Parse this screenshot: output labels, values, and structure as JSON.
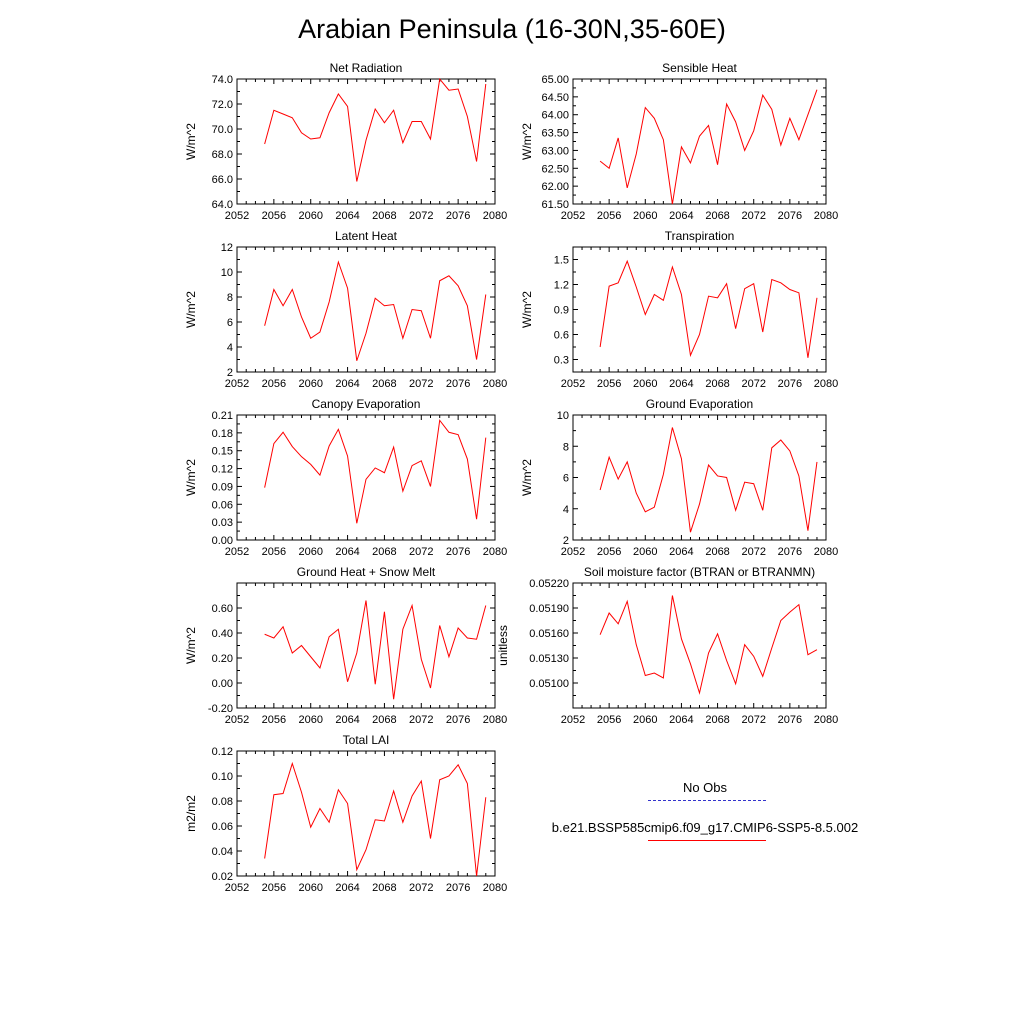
{
  "title": "Arabian Peninsula (16-30N,35-60E)",
  "series_color": "#ff0000",
  "obs_color": "#3333cc",
  "legend": {
    "items": [
      {
        "label": "No Obs",
        "style": "dashed",
        "color": "#3333cc"
      },
      {
        "label": "b.e21.BSSP585cmip6.f09_g17.CMIP6-SSP5-8.5.002",
        "style": "solid",
        "color": "#ff0000"
      }
    ]
  },
  "chart_data": [
    {
      "type": "line",
      "title": "Net Radiation",
      "ylabel": "W/m^2",
      "xlim": [
        2052,
        2080
      ],
      "ylim": [
        64.0,
        74.0
      ],
      "xticks": [
        "2052",
        "2056",
        "2060",
        "2064",
        "2068",
        "2072",
        "2076",
        "2080"
      ],
      "yticks": [
        "64.0",
        "66.0",
        "68.0",
        "70.0",
        "72.0",
        "74.0"
      ],
      "x": [
        2055,
        2056,
        2057,
        2058,
        2059,
        2060,
        2061,
        2062,
        2063,
        2064,
        2065,
        2066,
        2067,
        2068,
        2069,
        2070,
        2071,
        2072,
        2073,
        2074,
        2075,
        2076,
        2077,
        2078,
        2079
      ],
      "series": [
        {
          "values": [
            68.8,
            71.5,
            71.2,
            70.9,
            69.7,
            69.2,
            69.3,
            71.3,
            72.8,
            71.8,
            65.8,
            69.1,
            71.6,
            70.5,
            71.5,
            68.9,
            70.6,
            70.6,
            69.2,
            74.0,
            73.1,
            73.2,
            71.0,
            67.4,
            73.6
          ]
        }
      ]
    },
    {
      "type": "line",
      "title": "Sensible Heat",
      "ylabel": "W/m^2",
      "xlim": [
        2052,
        2080
      ],
      "ylim": [
        61.5,
        65.0
      ],
      "xticks": [
        "2052",
        "2056",
        "2060",
        "2064",
        "2068",
        "2072",
        "2076",
        "2080"
      ],
      "yticks": [
        "61.50",
        "62.00",
        "62.50",
        "63.00",
        "63.50",
        "64.00",
        "64.50",
        "65.00"
      ],
      "x": [
        2055,
        2056,
        2057,
        2058,
        2059,
        2060,
        2061,
        2062,
        2063,
        2064,
        2065,
        2066,
        2067,
        2068,
        2069,
        2070,
        2071,
        2072,
        2073,
        2074,
        2075,
        2076,
        2077,
        2078,
        2079
      ],
      "series": [
        {
          "values": [
            62.7,
            62.5,
            63.35,
            61.95,
            62.9,
            64.2,
            63.9,
            63.3,
            61.5,
            63.1,
            62.65,
            63.4,
            63.7,
            62.6,
            64.3,
            63.8,
            63.0,
            63.55,
            64.55,
            64.15,
            63.15,
            63.9,
            63.3,
            64.0,
            64.7
          ]
        }
      ]
    },
    {
      "type": "line",
      "title": "Latent Heat",
      "ylabel": "W/m^2",
      "xlim": [
        2052,
        2080
      ],
      "ylim": [
        2,
        12
      ],
      "xticks": [
        "2052",
        "2056",
        "2060",
        "2064",
        "2068",
        "2072",
        "2076",
        "2080"
      ],
      "yticks": [
        "2",
        "4",
        "6",
        "8",
        "10",
        "12"
      ],
      "x": [
        2055,
        2056,
        2057,
        2058,
        2059,
        2060,
        2061,
        2062,
        2063,
        2064,
        2065,
        2066,
        2067,
        2068,
        2069,
        2070,
        2071,
        2072,
        2073,
        2074,
        2075,
        2076,
        2077,
        2078,
        2079
      ],
      "series": [
        {
          "values": [
            5.7,
            8.6,
            7.3,
            8.6,
            6.4,
            4.7,
            5.2,
            7.6,
            10.8,
            8.7,
            2.9,
            5.1,
            7.9,
            7.3,
            7.4,
            4.7,
            7.0,
            6.9,
            4.7,
            9.3,
            9.7,
            8.9,
            7.3,
            3.0,
            8.2
          ]
        }
      ]
    },
    {
      "type": "line",
      "title": "Transpiration",
      "ylabel": "W/m^2",
      "xlim": [
        2052,
        2080
      ],
      "ylim": [
        0.15,
        1.65
      ],
      "xticks": [
        "2052",
        "2056",
        "2060",
        "2064",
        "2068",
        "2072",
        "2076",
        "2080"
      ],
      "yticks": [
        "0.3",
        "0.6",
        "0.9",
        "1.2",
        "1.5"
      ],
      "x": [
        2055,
        2056,
        2057,
        2058,
        2059,
        2060,
        2061,
        2062,
        2063,
        2064,
        2065,
        2066,
        2067,
        2068,
        2069,
        2070,
        2071,
        2072,
        2073,
        2074,
        2075,
        2076,
        2077,
        2078,
        2079
      ],
      "series": [
        {
          "values": [
            0.45,
            1.18,
            1.22,
            1.48,
            1.17,
            0.84,
            1.08,
            1.01,
            1.41,
            1.08,
            0.35,
            0.6,
            1.06,
            1.04,
            1.21,
            0.67,
            1.15,
            1.21,
            0.63,
            1.26,
            1.22,
            1.14,
            1.1,
            0.32,
            1.04
          ]
        }
      ]
    },
    {
      "type": "line",
      "title": "Canopy Evaporation",
      "ylabel": "W/m^2",
      "xlim": [
        2052,
        2080
      ],
      "ylim": [
        0.0,
        0.21
      ],
      "xticks": [
        "2052",
        "2056",
        "2060",
        "2064",
        "2068",
        "2072",
        "2076",
        "2080"
      ],
      "yticks": [
        "0.00",
        "0.03",
        "0.06",
        "0.09",
        "0.12",
        "0.15",
        "0.18",
        "0.21"
      ],
      "x": [
        2055,
        2056,
        2057,
        2058,
        2059,
        2060,
        2061,
        2062,
        2063,
        2064,
        2065,
        2066,
        2067,
        2068,
        2069,
        2070,
        2071,
        2072,
        2073,
        2074,
        2075,
        2076,
        2077,
        2078,
        2079
      ],
      "series": [
        {
          "values": [
            0.088,
            0.162,
            0.181,
            0.157,
            0.14,
            0.127,
            0.109,
            0.158,
            0.186,
            0.141,
            0.028,
            0.102,
            0.121,
            0.113,
            0.156,
            0.082,
            0.125,
            0.133,
            0.09,
            0.201,
            0.181,
            0.177,
            0.136,
            0.035,
            0.172
          ]
        }
      ]
    },
    {
      "type": "line",
      "title": "Ground Evaporation",
      "ylabel": "W/m^2",
      "xlim": [
        2052,
        2080
      ],
      "ylim": [
        2,
        10
      ],
      "xticks": [
        "2052",
        "2056",
        "2060",
        "2064",
        "2068",
        "2072",
        "2076",
        "2080"
      ],
      "yticks": [
        "2",
        "4",
        "6",
        "8",
        "10"
      ],
      "x": [
        2055,
        2056,
        2057,
        2058,
        2059,
        2060,
        2061,
        2062,
        2063,
        2064,
        2065,
        2066,
        2067,
        2068,
        2069,
        2070,
        2071,
        2072,
        2073,
        2074,
        2075,
        2076,
        2077,
        2078,
        2079
      ],
      "series": [
        {
          "values": [
            5.2,
            7.3,
            5.9,
            7.0,
            5.0,
            3.8,
            4.1,
            6.2,
            9.2,
            7.2,
            2.5,
            4.3,
            6.8,
            6.1,
            6.0,
            3.9,
            5.7,
            5.6,
            3.9,
            7.9,
            8.4,
            7.7,
            6.1,
            2.6,
            7.0
          ]
        }
      ]
    },
    {
      "type": "line",
      "title": "Ground Heat + Snow Melt",
      "ylabel": "W/m^2",
      "xlim": [
        2052,
        2080
      ],
      "ylim": [
        -0.2,
        0.8
      ],
      "xticks": [
        "2052",
        "2056",
        "2060",
        "2064",
        "2068",
        "2072",
        "2076",
        "2080"
      ],
      "yticks": [
        "-0.20",
        "0.00",
        "0.20",
        "0.40",
        "0.60"
      ],
      "x": [
        2055,
        2056,
        2057,
        2058,
        2059,
        2060,
        2061,
        2062,
        2063,
        2064,
        2065,
        2066,
        2067,
        2068,
        2069,
        2070,
        2071,
        2072,
        2073,
        2074,
        2075,
        2076,
        2077,
        2078,
        2079
      ],
      "series": [
        {
          "values": [
            0.39,
            0.36,
            0.45,
            0.24,
            0.3,
            0.21,
            0.12,
            0.37,
            0.43,
            0.01,
            0.24,
            0.66,
            -0.01,
            0.57,
            -0.13,
            0.43,
            0.62,
            0.19,
            -0.04,
            0.46,
            0.21,
            0.44,
            0.36,
            0.35,
            0.62
          ]
        }
      ]
    },
    {
      "type": "line",
      "title": "Soil moisture factor (BTRAN or BTRANMN)",
      "ylabel": "unitless",
      "xlim": [
        2052,
        2080
      ],
      "ylim": [
        0.0507,
        0.0522
      ],
      "xticks": [
        "2052",
        "2056",
        "2060",
        "2064",
        "2068",
        "2072",
        "2076",
        "2080"
      ],
      "yticks": [
        "0.05100",
        "0.05130",
        "0.05160",
        "0.05190",
        "0.05220"
      ],
      "x": [
        2055,
        2056,
        2057,
        2058,
        2059,
        2060,
        2061,
        2062,
        2063,
        2064,
        2065,
        2066,
        2067,
        2068,
        2069,
        2070,
        2071,
        2072,
        2073,
        2074,
        2075,
        2076,
        2077,
        2078,
        2079
      ],
      "series": [
        {
          "values": [
            0.05158,
            0.05184,
            0.05171,
            0.05198,
            0.05146,
            0.05109,
            0.05112,
            0.05106,
            0.05205,
            0.05153,
            0.05123,
            0.05088,
            0.05136,
            0.05159,
            0.05127,
            0.05099,
            0.05146,
            0.05132,
            0.05108,
            0.05142,
            0.05175,
            0.05185,
            0.05194,
            0.05134,
            0.0514
          ]
        }
      ]
    },
    {
      "type": "line",
      "title": "Total LAI",
      "ylabel": "m2/m2",
      "xlim": [
        2052,
        2080
      ],
      "ylim": [
        0.02,
        0.12
      ],
      "xticks": [
        "2052",
        "2056",
        "2060",
        "2064",
        "2068",
        "2072",
        "2076",
        "2080"
      ],
      "yticks": [
        "0.02",
        "0.04",
        "0.06",
        "0.08",
        "0.10",
        "0.12"
      ],
      "x": [
        2055,
        2056,
        2057,
        2058,
        2059,
        2060,
        2061,
        2062,
        2063,
        2064,
        2065,
        2066,
        2067,
        2068,
        2069,
        2070,
        2071,
        2072,
        2073,
        2074,
        2075,
        2076,
        2077,
        2078,
        2079
      ],
      "series": [
        {
          "values": [
            0.034,
            0.085,
            0.086,
            0.11,
            0.087,
            0.059,
            0.074,
            0.063,
            0.089,
            0.078,
            0.025,
            0.041,
            0.065,
            0.064,
            0.088,
            0.063,
            0.084,
            0.096,
            0.05,
            0.097,
            0.1,
            0.109,
            0.094,
            0.02,
            0.083
          ]
        }
      ]
    }
  ]
}
